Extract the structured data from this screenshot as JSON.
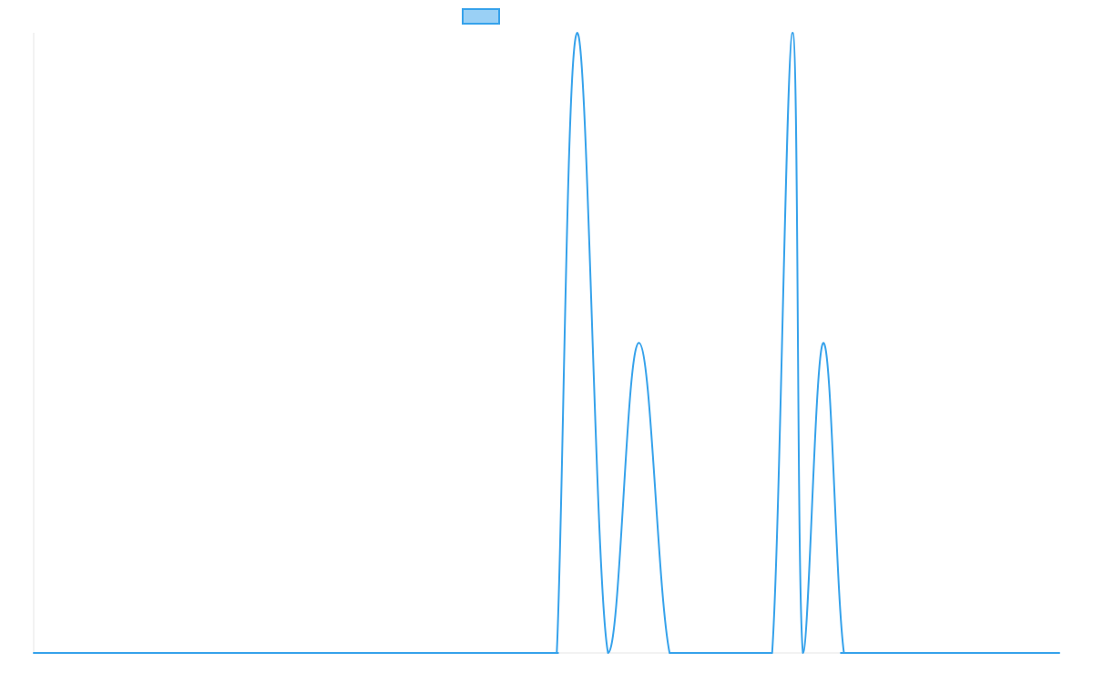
{
  "chart_data": {
    "type": "line",
    "title": "",
    "xlabel": "",
    "ylabel": "",
    "grid": false,
    "legend_placement": "top-center",
    "x": [
      0,
      10,
      20,
      30,
      40,
      50,
      51,
      53,
      56,
      59,
      62,
      65,
      66,
      67,
      68,
      70,
      72,
      74,
      75,
      77,
      79,
      81,
      100
    ],
    "ylim": [
      0,
      1
    ],
    "series": [
      {
        "name": "",
        "color": "#36a2eb",
        "fill": "#9ad0f5",
        "values": [
          0,
          0,
          0,
          0,
          0,
          0,
          0,
          1,
          0,
          0.5,
          0,
          0,
          0,
          0,
          0,
          0,
          0,
          1,
          0,
          0.5,
          0,
          0,
          0
        ]
      }
    ]
  }
}
